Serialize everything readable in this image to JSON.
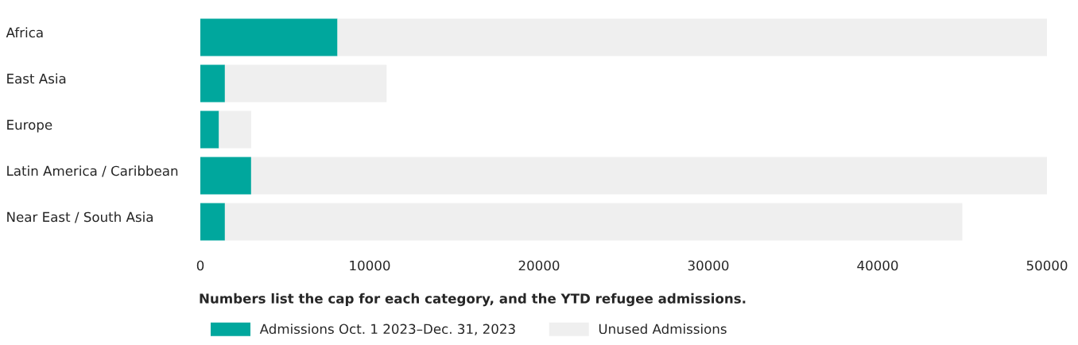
{
  "chart_data": {
    "type": "bar",
    "orientation": "horizontal",
    "stacked": true,
    "categories": [
      "Africa",
      "East Asia",
      "Europe",
      "Latin America / Caribbean",
      "Near East / South Asia"
    ],
    "series": [
      {
        "name": "Admissions Oct. 1 2023–Dec. 31, 2023",
        "color": "#00a79d",
        "values": [
          8100,
          1450,
          1100,
          3000,
          1450
        ]
      },
      {
        "name": "Unused Admissions",
        "color": "#efefef",
        "values": [
          41900,
          9550,
          1900,
          47000,
          43550
        ]
      }
    ],
    "xlim": [
      0,
      50000
    ],
    "xticks": [
      0,
      10000,
      20000,
      30000,
      40000,
      50000
    ],
    "annotations": [
      "Numbers list the cap for each category, and the YTD refugee admissions."
    ],
    "legend": "bottom",
    "grid": false
  }
}
